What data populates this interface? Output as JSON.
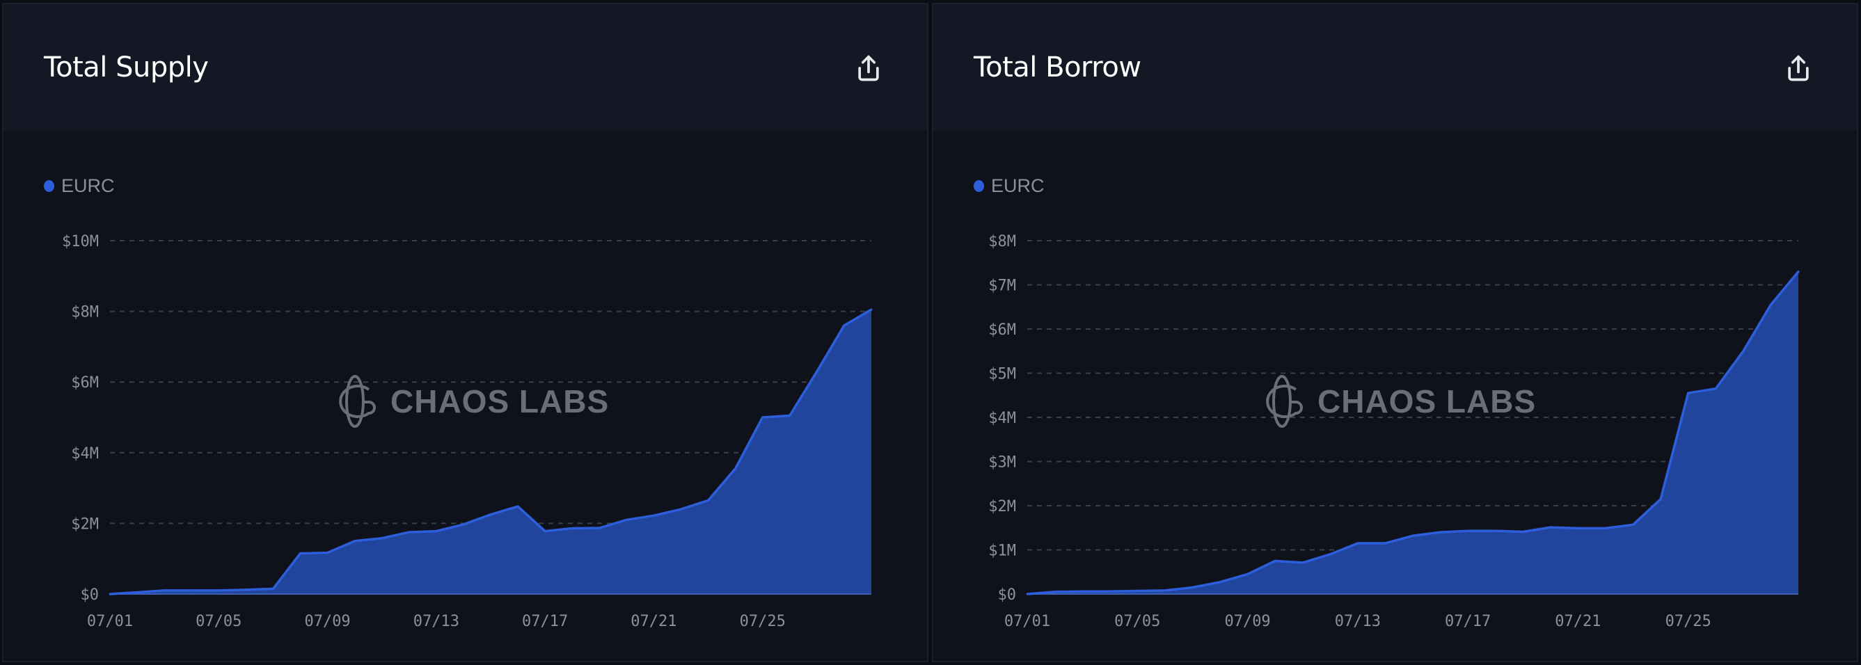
{
  "colors": {
    "series": "#2d5fdc",
    "fill": "#2349a3",
    "grid": "#3a3f4a"
  },
  "watermark": "CHAOS LABS",
  "chart_data": [
    {
      "type": "area",
      "title": "Total Supply",
      "export_icon": "share-export-icon",
      "legend": [
        "EURC"
      ],
      "x": [
        "07/01",
        "07/02",
        "07/03",
        "07/04",
        "07/05",
        "07/06",
        "07/07",
        "07/08",
        "07/09",
        "07/10",
        "07/11",
        "07/12",
        "07/13",
        "07/14",
        "07/15",
        "07/16",
        "07/17",
        "07/18",
        "07/19",
        "07/20",
        "07/21",
        "07/22",
        "07/23",
        "07/24",
        "07/25",
        "07/26",
        "07/27",
        "07/28",
        "07/29"
      ],
      "xticks": [
        "07/01",
        "07/05",
        "07/09",
        "07/13",
        "07/17",
        "07/21",
        "07/25"
      ],
      "series": [
        {
          "name": "EURC",
          "values": [
            0,
            0.05,
            0.1,
            0.1,
            0.1,
            0.12,
            0.15,
            1.15,
            1.17,
            1.5,
            1.58,
            1.75,
            1.78,
            1.97,
            2.25,
            2.48,
            1.78,
            1.86,
            1.87,
            2.1,
            2.22,
            2.4,
            2.65,
            3.55,
            5.0,
            5.05,
            6.3,
            7.6,
            8.05
          ]
        }
      ],
      "yunit": "M USD",
      "ylim": [
        0,
        10
      ],
      "yticks": [
        0,
        2,
        4,
        6,
        8,
        10
      ],
      "yticklabels": [
        "$0",
        "$2M",
        "$4M",
        "$6M",
        "$8M",
        "$10M"
      ],
      "grid": true
    },
    {
      "type": "area",
      "title": "Total Borrow",
      "export_icon": "share-export-icon",
      "legend": [
        "EURC"
      ],
      "x": [
        "07/01",
        "07/02",
        "07/03",
        "07/04",
        "07/05",
        "07/06",
        "07/07",
        "07/08",
        "07/09",
        "07/10",
        "07/11",
        "07/12",
        "07/13",
        "07/14",
        "07/15",
        "07/16",
        "07/17",
        "07/18",
        "07/19",
        "07/20",
        "07/21",
        "07/22",
        "07/23",
        "07/24",
        "07/25",
        "07/26",
        "07/27",
        "07/28",
        "07/29"
      ],
      "xticks": [
        "07/01",
        "07/05",
        "07/09",
        "07/13",
        "07/17",
        "07/21",
        "07/25"
      ],
      "series": [
        {
          "name": "EURC",
          "values": [
            0,
            0.05,
            0.06,
            0.06,
            0.07,
            0.08,
            0.15,
            0.27,
            0.45,
            0.75,
            0.71,
            0.9,
            1.15,
            1.15,
            1.32,
            1.4,
            1.43,
            1.43,
            1.41,
            1.51,
            1.49,
            1.49,
            1.57,
            2.15,
            4.55,
            4.65,
            5.5,
            6.55,
            7.3
          ]
        }
      ],
      "yunit": "M USD",
      "ylim": [
        0,
        8
      ],
      "yticks": [
        0,
        1,
        2,
        3,
        4,
        5,
        6,
        7,
        8
      ],
      "yticklabels": [
        "$0",
        "$1M",
        "$2M",
        "$3M",
        "$4M",
        "$5M",
        "$6M",
        "$7M",
        "$8M"
      ],
      "grid": true
    }
  ]
}
